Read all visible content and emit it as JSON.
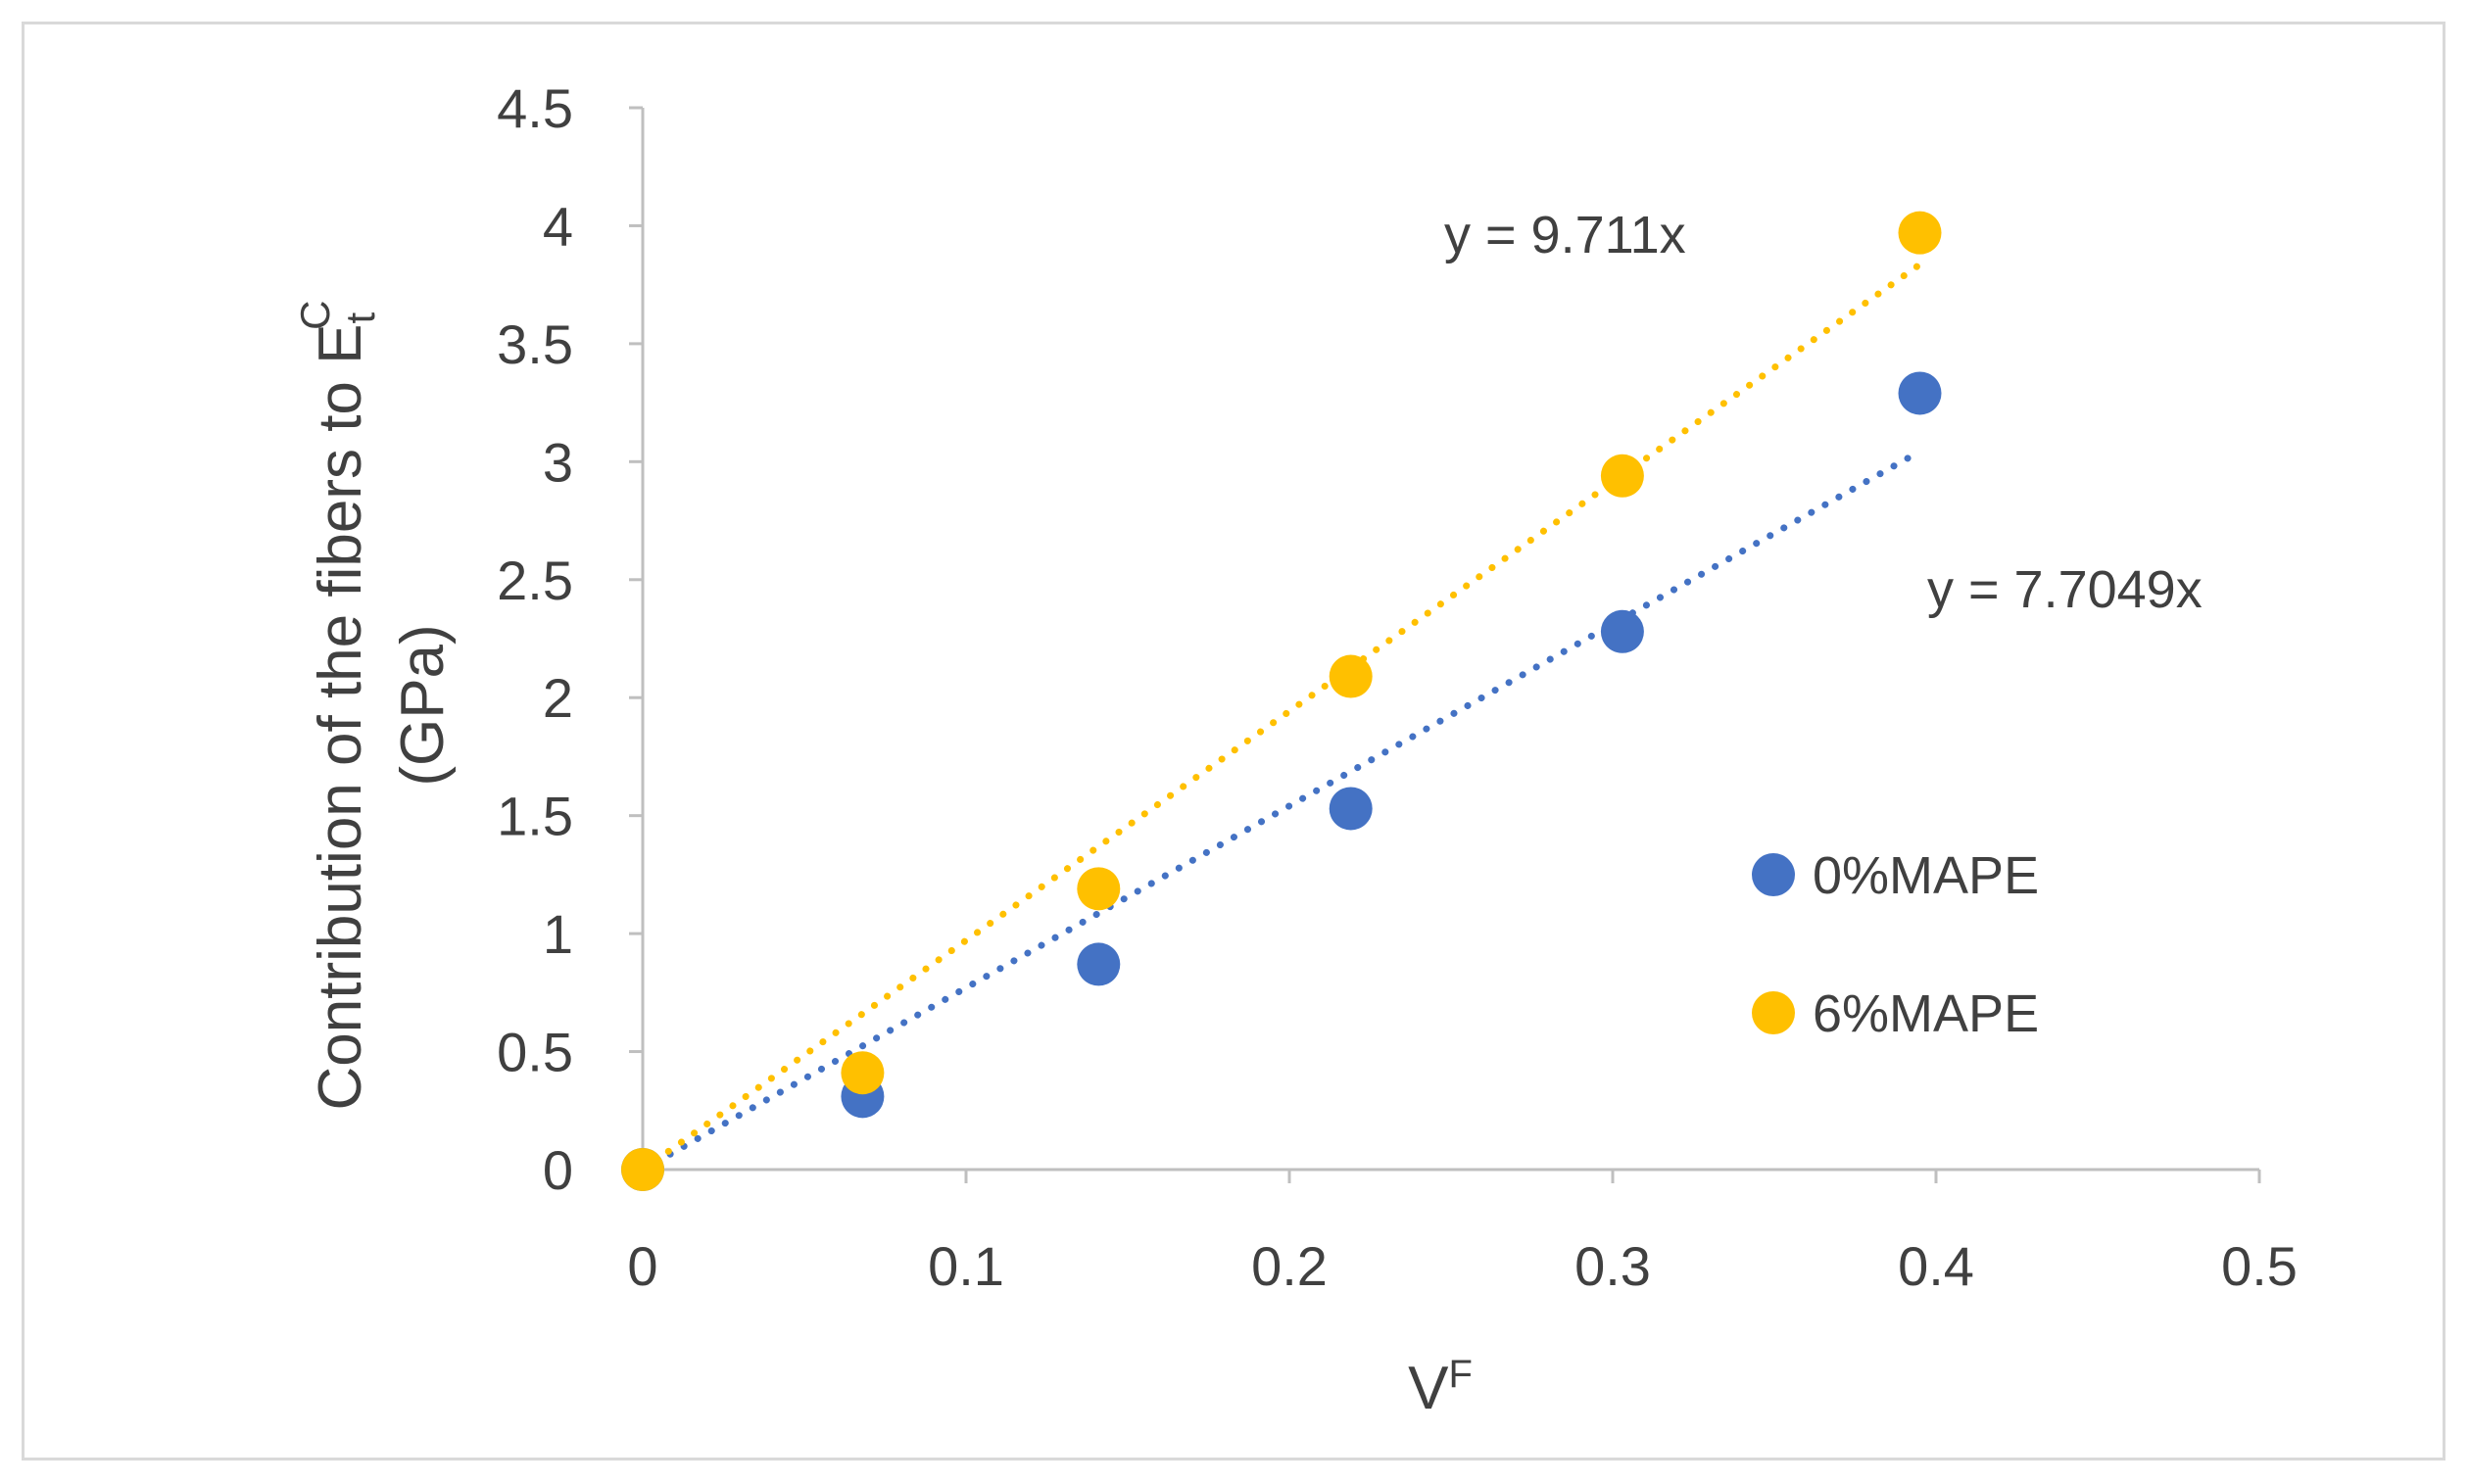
{
  "chart_data": {
    "type": "scatter",
    "xlabel": {
      "main": "V",
      "sup": "F"
    },
    "ylabel": {
      "line1_main": "Contribution of the fibers to E",
      "line1_sub": "t",
      "line1_sup": "C",
      "line2": "(GPa)"
    },
    "xlim": [
      0,
      0.5
    ],
    "ylim": [
      0,
      4.5
    ],
    "xticks": [
      "0",
      "0.1",
      "0.2",
      "0.3",
      "0.4",
      "0.5"
    ],
    "xtick_values": [
      0,
      0.1,
      0.2,
      0.3,
      0.4,
      0.5
    ],
    "yticks": [
      "0",
      "0.5",
      "1",
      "1.5",
      "2",
      "2.5",
      "3",
      "3.5",
      "4",
      "4.5"
    ],
    "ytick_values": [
      0,
      0.5,
      1,
      1.5,
      2,
      2.5,
      3,
      3.5,
      4,
      4.5
    ],
    "grid": false,
    "legend_position": "right",
    "series": [
      {
        "name": "0%MAPE",
        "color": "#4472c4",
        "x": [
          0,
          0.068,
          0.141,
          0.219,
          0.303,
          0.395
        ],
        "y": [
          0,
          0.31,
          0.87,
          1.53,
          2.28,
          3.29
        ],
        "trendline": {
          "slope": 7.7049,
          "label": "y = 7.7049x"
        }
      },
      {
        "name": "6%MAPE",
        "color": "#ffc000",
        "x": [
          0,
          0.068,
          0.141,
          0.219,
          0.303,
          0.395
        ],
        "y": [
          0,
          0.41,
          1.19,
          2.09,
          2.94,
          3.97
        ],
        "trendline": {
          "slope": 9.711,
          "label": "y = 9.711x"
        }
      }
    ]
  }
}
